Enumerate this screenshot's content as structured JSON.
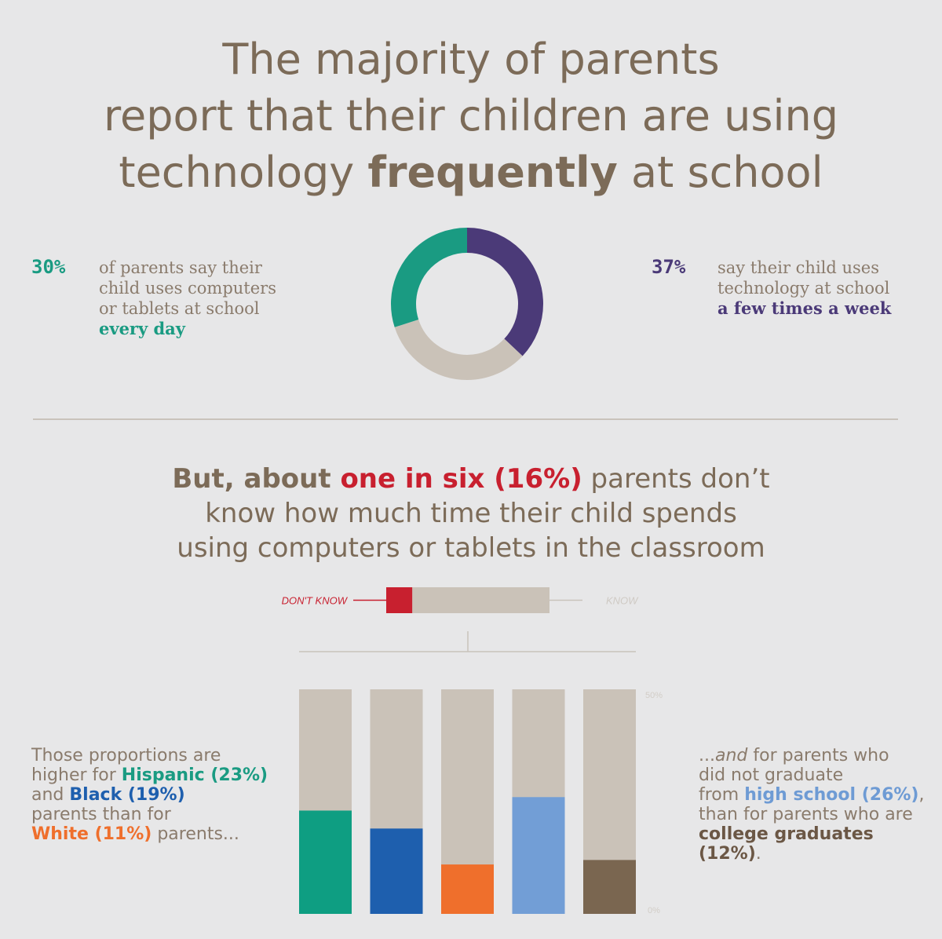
{
  "headline": {
    "line1": "The majority of parents",
    "line2": "report that their children are using",
    "line3_pre": "technology ",
    "line3_bold": "frequently",
    "line3_post": " at school"
  },
  "left_stat": {
    "pct": "30%",
    "line1": "of parents say their",
    "line2": "child uses computers",
    "line3": "or tablets at school",
    "highlight": "every day"
  },
  "right_stat": {
    "pct": "37%",
    "line1": "say their child uses",
    "line2": "technology at school",
    "highlight": "a few times a week"
  },
  "sub_headline": {
    "pre_bold": "But, about ",
    "red": "one in six (16%)",
    "post1": " parents don’t",
    "line2": "know how much time their child spends",
    "line3": "using computers or tablets in the classroom"
  },
  "left_note": {
    "t1": "Those proportions are",
    "t2": "higher for ",
    "hisp": "Hispanic (23%)",
    "t3": "and ",
    "black": "Black (19%)",
    "t4": "parents than for",
    "white": "White (11%)",
    "t5": " parents..."
  },
  "right_note": {
    "t1": "...",
    "and": "and",
    "t2": " for parents who",
    "t3": "did not graduate",
    "t4": "from ",
    "hs": "high school (26%)",
    "t5": ",",
    "t6": "than for parents who are",
    "col": "college graduates (12%)",
    "t7": "."
  },
  "chart_data": [
    {
      "type": "pie",
      "labels": [
        "every day",
        "a few times a week",
        ""
      ],
      "values": [
        30,
        37,
        33
      ],
      "colors": [
        "#1a9b82",
        "#4b3a78",
        "#cac2b8"
      ]
    },
    {
      "type": "bar",
      "orientation": "horizontal-stacked",
      "categories": [
        "DON'T KNOW",
        "KNOW"
      ],
      "values": [
        16,
        84
      ],
      "colors": [
        "#c8202f",
        "#cac2b8"
      ]
    },
    {
      "type": "bar",
      "categories": [
        "Hispanic",
        "Black",
        "White",
        "high school",
        "college graduates"
      ],
      "values": [
        23,
        19,
        11,
        26,
        12
      ],
      "colors": [
        "#0e9e82",
        "#1e5fae",
        "#ef6f2c",
        "#729ed6",
        "#7a6650"
      ],
      "ylim": [
        0,
        50
      ],
      "tick_labels": [
        "0%",
        "50%"
      ]
    }
  ]
}
